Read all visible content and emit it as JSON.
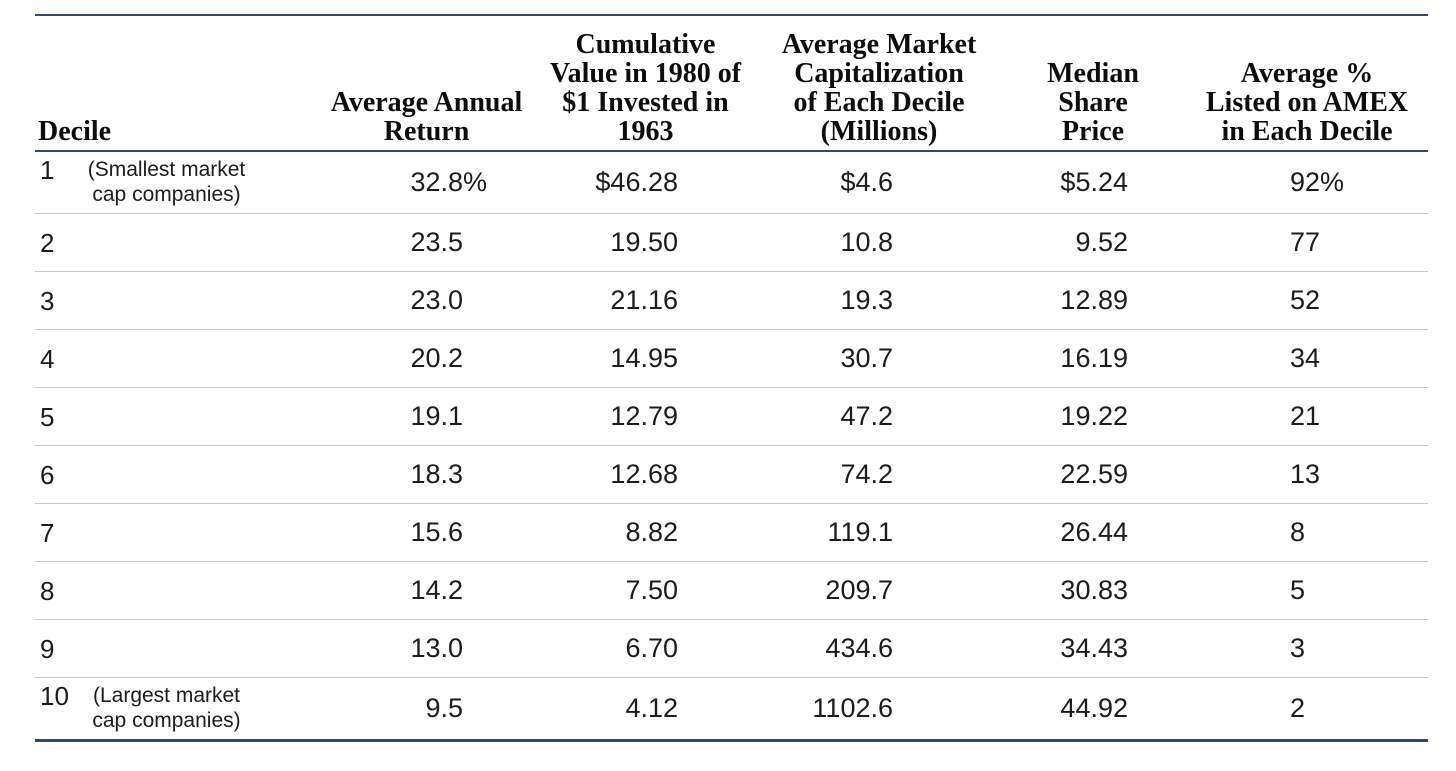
{
  "accent_color": "#2e4a6b",
  "separator_color": "#c6c6c6",
  "table": {
    "headers": {
      "decile": "Decile",
      "avg_annual_return": "Average Annual\nReturn",
      "cumulative_value": "Cumulative\nValue in 1980 of\n$1 Invested in\n1963",
      "market_cap": "Average Market\nCapitalization\nof Each Decile\n(Millions)",
      "median_share_price": "Median\nShare\nPrice",
      "amex_pct": "Average %\nListed on AMEX\nin Each Decile"
    },
    "rows": [
      {
        "decile": "1",
        "note": "(Smallest market cap companies)",
        "avg_annual_return": "32.8",
        "avg_annual_return_suffix": "%",
        "cumulative_value": "$46.28",
        "market_cap": "$4.6",
        "median_share_price": "$5.24",
        "amex_pct": "92",
        "amex_pct_suffix": "%"
      },
      {
        "decile": "2",
        "note": "",
        "avg_annual_return": "23.5",
        "avg_annual_return_suffix": "",
        "cumulative_value": "19.50",
        "market_cap": "10.8",
        "median_share_price": "9.52",
        "amex_pct": "77",
        "amex_pct_suffix": ""
      },
      {
        "decile": "3",
        "note": "",
        "avg_annual_return": "23.0",
        "avg_annual_return_suffix": "",
        "cumulative_value": "21.16",
        "market_cap": "19.3",
        "median_share_price": "12.89",
        "amex_pct": "52",
        "amex_pct_suffix": ""
      },
      {
        "decile": "4",
        "note": "",
        "avg_annual_return": "20.2",
        "avg_annual_return_suffix": "",
        "cumulative_value": "14.95",
        "market_cap": "30.7",
        "median_share_price": "16.19",
        "amex_pct": "34",
        "amex_pct_suffix": ""
      },
      {
        "decile": "5",
        "note": "",
        "avg_annual_return": "19.1",
        "avg_annual_return_suffix": "",
        "cumulative_value": "12.79",
        "market_cap": "47.2",
        "median_share_price": "19.22",
        "amex_pct": "21",
        "amex_pct_suffix": ""
      },
      {
        "decile": "6",
        "note": "",
        "avg_annual_return": "18.3",
        "avg_annual_return_suffix": "",
        "cumulative_value": "12.68",
        "market_cap": "74.2",
        "median_share_price": "22.59",
        "amex_pct": "13",
        "amex_pct_suffix": ""
      },
      {
        "decile": "7",
        "note": "",
        "avg_annual_return": "15.6",
        "avg_annual_return_suffix": "",
        "cumulative_value": "8.82",
        "market_cap": "119.1",
        "median_share_price": "26.44",
        "amex_pct": "8",
        "amex_pct_suffix": ""
      },
      {
        "decile": "8",
        "note": "",
        "avg_annual_return": "14.2",
        "avg_annual_return_suffix": "",
        "cumulative_value": "7.50",
        "market_cap": "209.7",
        "median_share_price": "30.83",
        "amex_pct": "5",
        "amex_pct_suffix": ""
      },
      {
        "decile": "9",
        "note": "",
        "avg_annual_return": "13.0",
        "avg_annual_return_suffix": "",
        "cumulative_value": "6.70",
        "market_cap": "434.6",
        "median_share_price": "34.43",
        "amex_pct": "3",
        "amex_pct_suffix": ""
      },
      {
        "decile": "10",
        "note": "(Largest market cap companies)",
        "avg_annual_return": "9.5",
        "avg_annual_return_suffix": "",
        "cumulative_value": "4.12",
        "market_cap": "1102.6",
        "median_share_price": "44.92",
        "amex_pct": "2",
        "amex_pct_suffix": ""
      }
    ]
  }
}
